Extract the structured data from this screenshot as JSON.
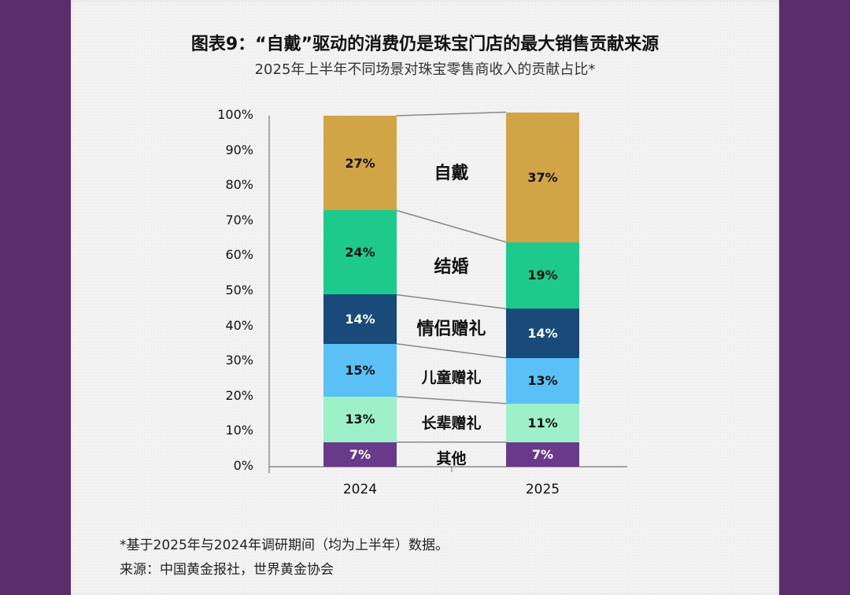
{
  "page": {
    "border_color": "#5b2d6c",
    "paper_color": "#f3f3f3"
  },
  "header": {
    "title": "图表9：“自戴”驱动的消费仍是珠宝门店的最大销售贡献来源",
    "subtitle": "2025年上半年不同场景对珠宝零售商收入的贡献占比*"
  },
  "footer": {
    "footnote": "*基于2025年与2024年调研期间（均为上半年）数据。",
    "source": "来源：中国黄金报社，世界黄金协会"
  },
  "chart_data": {
    "type": "bar",
    "stacked": true,
    "normalized": true,
    "title": "图表9：“自戴”驱动的消费仍是珠宝门店的最大销售贡献来源",
    "subtitle": "2025年上半年不同场景对珠宝零售商收入的贡献占比*",
    "xlabel": "",
    "ylabel": "",
    "ylim": [
      0,
      100
    ],
    "y_ticks": [
      "0%",
      "10%",
      "20%",
      "30%",
      "40%",
      "50%",
      "60%",
      "70%",
      "80%",
      "90%",
      "100%"
    ],
    "categories": [
      "2024",
      "2025"
    ],
    "series": [
      {
        "name": "其他",
        "color": "#6a3a8a",
        "label_color": "#ffffff",
        "values": [
          7,
          7
        ],
        "labels": [
          "7%",
          "7%"
        ]
      },
      {
        "name": "长辈赠礼",
        "color": "#9ef0c8",
        "label_color": "#111111",
        "values": [
          13,
          11
        ],
        "labels": [
          "13%",
          "11%"
        ]
      },
      {
        "name": "儿童赠礼",
        "color": "#5bc0f5",
        "label_color": "#111111",
        "values": [
          15,
          13
        ],
        "labels": [
          "15%",
          "13%"
        ]
      },
      {
        "name": "情侣赠礼",
        "color": "#194a7a",
        "label_color": "#ffffff",
        "values": [
          14,
          14
        ],
        "labels": [
          "14%",
          "14%"
        ]
      },
      {
        "name": "结婚",
        "color": "#1ec98e",
        "label_color": "#111111",
        "values": [
          24,
          19
        ],
        "labels": [
          "24%",
          "19%"
        ]
      },
      {
        "name": "自戴",
        "color": "#d1a445",
        "label_color": "#111111",
        "values": [
          27,
          37
        ],
        "labels": [
          "27%",
          "37%"
        ]
      }
    ],
    "category_labels": [
      {
        "name": "自戴",
        "size": 22
      },
      {
        "name": "结婚",
        "size": 22
      },
      {
        "name": "情侣赠礼",
        "size": 22
      },
      {
        "name": "儿童赠礼",
        "size": 19
      },
      {
        "name": "长辈赠礼",
        "size": 19
      },
      {
        "name": "其他",
        "size": 19
      }
    ],
    "legend": "inline between bars with connector lines",
    "grid": false
  }
}
